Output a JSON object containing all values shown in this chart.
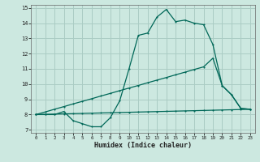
{
  "bg_color": "#cce8e0",
  "grid_color": "#aaccc4",
  "line_color": "#006858",
  "xlabel": "Humidex (Indice chaleur)",
  "xlim": [
    -0.5,
    23.5
  ],
  "ylim": [
    6.8,
    15.2
  ],
  "yticks": [
    7,
    8,
    9,
    10,
    11,
    12,
    13,
    14,
    15
  ],
  "xticks": [
    0,
    1,
    2,
    3,
    4,
    5,
    6,
    7,
    8,
    9,
    10,
    11,
    12,
    13,
    14,
    15,
    16,
    17,
    18,
    19,
    20,
    21,
    22,
    23
  ],
  "curve1_x": [
    0,
    1,
    2,
    3,
    4,
    5,
    6,
    7,
    8,
    9,
    10,
    11,
    12,
    13,
    14,
    15,
    16,
    17,
    18,
    19,
    20,
    21,
    22,
    23
  ],
  "curve1_y": [
    8.0,
    8.0,
    8.0,
    8.2,
    7.6,
    7.4,
    7.2,
    7.2,
    7.8,
    8.9,
    11.0,
    13.2,
    13.35,
    14.4,
    14.9,
    14.1,
    14.2,
    14.0,
    13.9,
    12.6,
    9.9,
    9.3,
    8.4,
    8.35
  ],
  "curve2_x": [
    0,
    1,
    2,
    3,
    4,
    5,
    6,
    7,
    8,
    9,
    10,
    11,
    12,
    13,
    14,
    15,
    16,
    17,
    18,
    19,
    20,
    21,
    22,
    23
  ],
  "curve2_y": [
    8.0,
    8.17,
    8.35,
    8.52,
    8.7,
    8.87,
    9.04,
    9.22,
    9.39,
    9.57,
    9.74,
    9.91,
    10.09,
    10.26,
    10.43,
    10.61,
    10.78,
    10.96,
    11.13,
    11.7,
    9.9,
    9.3,
    8.4,
    8.35
  ],
  "curve3_x": [
    0,
    1,
    2,
    3,
    4,
    5,
    6,
    7,
    8,
    9,
    10,
    11,
    12,
    13,
    14,
    15,
    16,
    17,
    18,
    19,
    20,
    21,
    22,
    23
  ],
  "curve3_y": [
    8.0,
    8.015,
    8.03,
    8.045,
    8.06,
    8.075,
    8.09,
    8.105,
    8.12,
    8.135,
    8.15,
    8.165,
    8.18,
    8.195,
    8.21,
    8.225,
    8.24,
    8.255,
    8.27,
    8.285,
    8.3,
    8.315,
    8.33,
    8.35
  ]
}
